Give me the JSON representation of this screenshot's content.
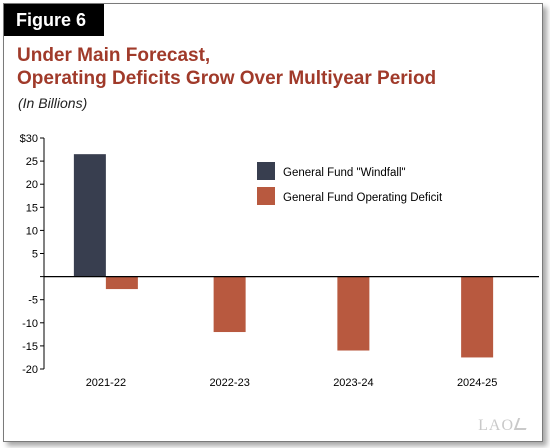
{
  "figure_label": "Figure 6",
  "title_line1": "Under Main Forecast,",
  "title_line2": "Operating Deficits Grow Over Multiyear Period",
  "subtitle": "(In Billions)",
  "watermark": "LAO",
  "colors": {
    "title": "#a03a2a",
    "windfall": "#383e4f",
    "deficit": "#b8593f"
  },
  "chart_data": {
    "type": "bar",
    "categories": [
      "2021-22",
      "2022-23",
      "2023-24",
      "2024-25"
    ],
    "series": [
      {
        "name": "General Fund \"Windfall\"",
        "values": [
          26.5,
          null,
          null,
          null
        ]
      },
      {
        "name": "General Fund Operating Deficit",
        "values": [
          -2.7,
          -12,
          -16,
          -17.5
        ]
      }
    ],
    "yticks": [
      "$30",
      "25",
      "20",
      "15",
      "10",
      "5",
      "",
      "-5",
      "-10",
      "-15",
      "-20"
    ],
    "ylim": [
      -20,
      30
    ],
    "legend_position": "top-right",
    "grid": false
  }
}
